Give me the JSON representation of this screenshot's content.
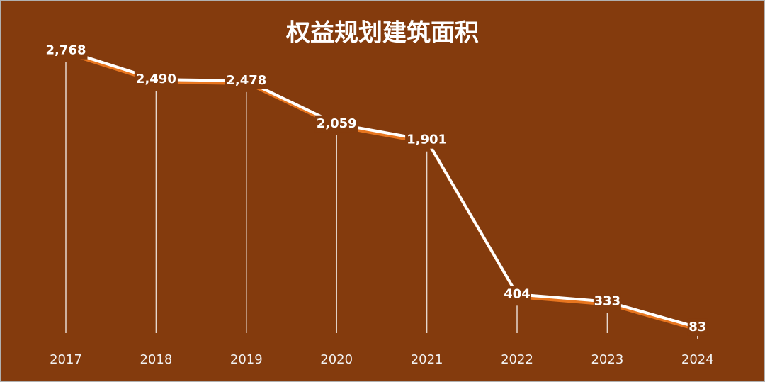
{
  "chart_data": {
    "type": "line",
    "title": "权益规划建筑面积",
    "categories": [
      "2017",
      "2018",
      "2019",
      "2020",
      "2021",
      "2022",
      "2023",
      "2024"
    ],
    "values": [
      2768,
      2490,
      2478,
      2059,
      1901,
      404,
      333,
      83
    ],
    "value_labels": [
      "2,768",
      "2,490",
      "2,478",
      "2,059",
      "1,901",
      "404",
      "333",
      "83"
    ],
    "color": "#ffffff",
    "shadow_color": "#e8761f",
    "background": "#843b0d",
    "ylim": [
      0,
      3000
    ],
    "drop_lines": true
  }
}
